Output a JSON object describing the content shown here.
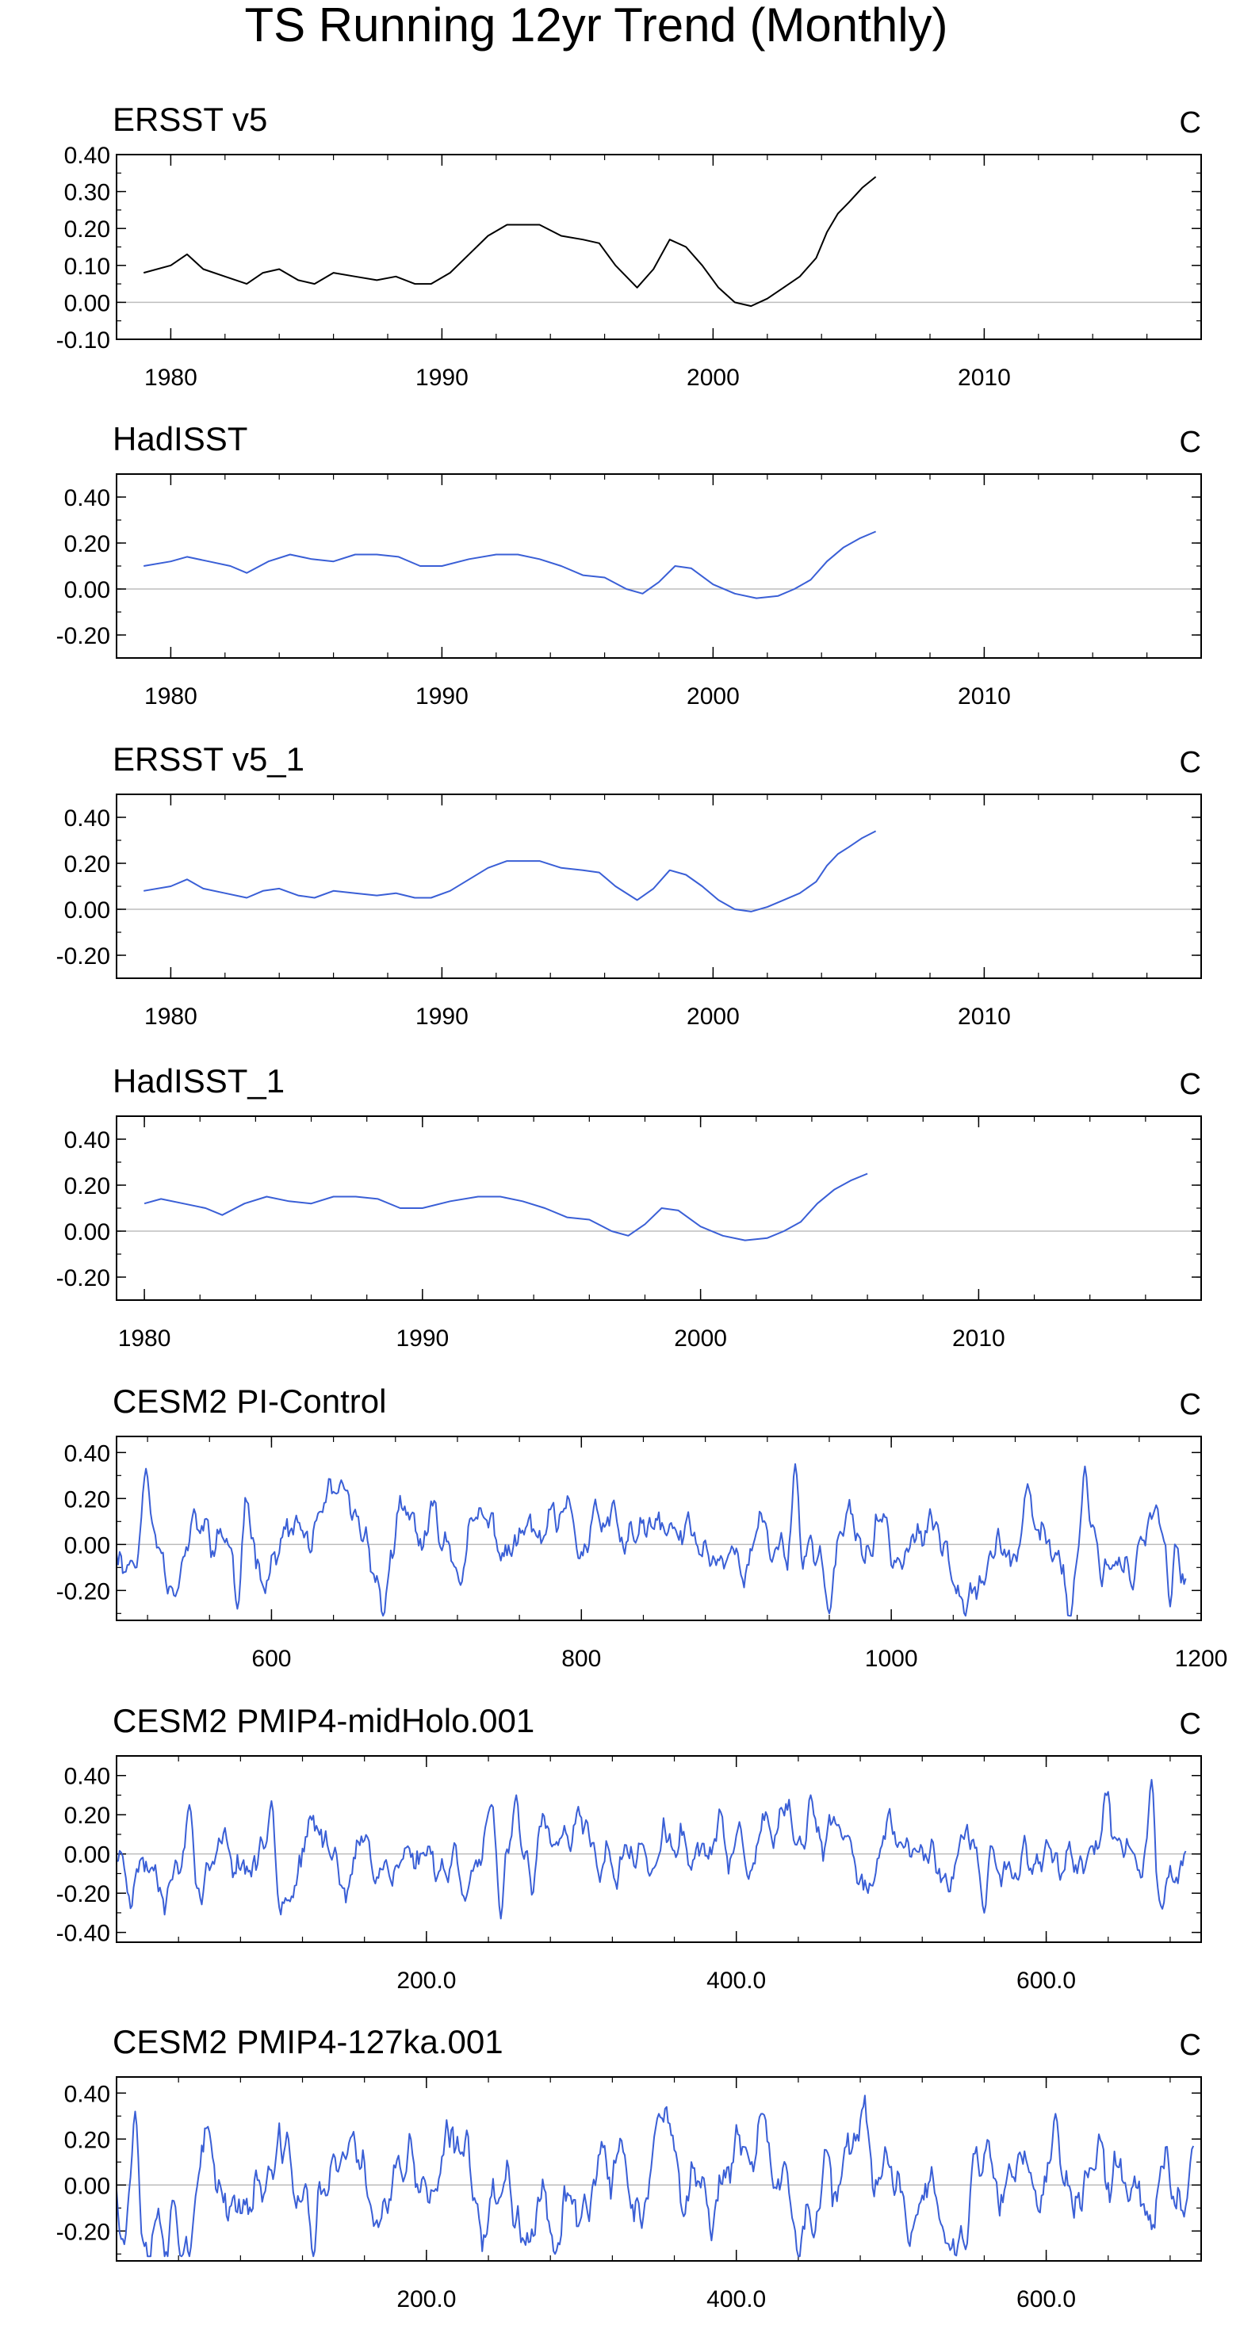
{
  "figure_title": "TS Running 12yr Trend (Monthly)",
  "colors": {
    "observed": "#000000",
    "model": "#3a5fd6",
    "zero_line": "#bdbdbd",
    "frame": "#000000"
  },
  "chart_data": [
    {
      "type": "line",
      "title": "ERSST v5",
      "units_label": "C",
      "line_color": "black",
      "xlim": [
        1978,
        2018
      ],
      "ylim": [
        -0.1,
        0.4
      ],
      "xticks": [
        1980,
        1990,
        2000,
        2010
      ],
      "xtick_labels": [
        "1980",
        "1990",
        "2000",
        "2010"
      ],
      "yticks": [
        -0.1,
        0.0,
        0.1,
        0.2,
        0.3,
        0.4
      ],
      "ytick_labels": [
        "-0.10",
        "0.00",
        "0.10",
        "0.20",
        "0.30",
        "0.40"
      ],
      "x": [
        1979.0,
        1980.0,
        1980.6,
        1981.2,
        1982.0,
        1982.8,
        1983.4,
        1984.0,
        1984.7,
        1985.3,
        1986.0,
        1986.8,
        1987.6,
        1988.3,
        1989.0,
        1989.6,
        1990.3,
        1991.0,
        1991.7,
        1992.4,
        1993.0,
        1993.6,
        1994.4,
        1995.2,
        1995.8,
        1996.4,
        1997.2,
        1997.8,
        1998.4,
        1999.0,
        1999.6,
        2000.2,
        2000.8,
        2001.4,
        2002.0,
        2002.6,
        2003.2,
        2003.8,
        2004.2,
        2004.6,
        2005.0,
        2005.5,
        2006.0
      ],
      "y": [
        0.08,
        0.1,
        0.13,
        0.09,
        0.07,
        0.05,
        0.08,
        0.09,
        0.06,
        0.05,
        0.08,
        0.07,
        0.06,
        0.07,
        0.05,
        0.05,
        0.08,
        0.13,
        0.18,
        0.21,
        0.21,
        0.21,
        0.18,
        0.17,
        0.16,
        0.1,
        0.04,
        0.09,
        0.17,
        0.15,
        0.1,
        0.04,
        0.0,
        -0.01,
        0.01,
        0.04,
        0.07,
        0.12,
        0.19,
        0.24,
        0.27,
        0.31,
        0.34
      ]
    },
    {
      "type": "line",
      "title": "HadISST",
      "units_label": "C",
      "line_color": "blue",
      "xlim": [
        1978,
        2018
      ],
      "ylim": [
        -0.3,
        0.5
      ],
      "xticks": [
        1980,
        1990,
        2000,
        2010
      ],
      "xtick_labels": [
        "1980",
        "1990",
        "2000",
        "2010"
      ],
      "yticks": [
        -0.2,
        0.0,
        0.2,
        0.4
      ],
      "ytick_labels": [
        "-0.20",
        "0.00",
        "0.20",
        "0.40"
      ],
      "x": [
        1979.0,
        1980.0,
        1980.6,
        1981.4,
        1982.2,
        1982.8,
        1983.6,
        1984.4,
        1985.2,
        1986.0,
        1986.8,
        1987.6,
        1988.4,
        1989.2,
        1990.0,
        1991.0,
        1992.0,
        1992.8,
        1993.6,
        1994.4,
        1995.2,
        1996.0,
        1996.8,
        1997.4,
        1998.0,
        1998.6,
        1999.2,
        2000.0,
        2000.8,
        2001.6,
        2002.4,
        2003.0,
        2003.6,
        2004.2,
        2004.8,
        2005.4,
        2006.0
      ],
      "y": [
        0.1,
        0.12,
        0.14,
        0.12,
        0.1,
        0.07,
        0.12,
        0.15,
        0.13,
        0.12,
        0.15,
        0.15,
        0.14,
        0.1,
        0.1,
        0.13,
        0.15,
        0.15,
        0.13,
        0.1,
        0.06,
        0.05,
        0.0,
        -0.02,
        0.03,
        0.1,
        0.09,
        0.02,
        -0.02,
        -0.04,
        -0.03,
        0.0,
        0.04,
        0.12,
        0.18,
        0.22,
        0.25
      ]
    },
    {
      "type": "line",
      "title": "ERSST v5_1",
      "units_label": "C",
      "line_color": "blue",
      "xlim": [
        1978,
        2018
      ],
      "ylim": [
        -0.3,
        0.5
      ],
      "xticks": [
        1980,
        1990,
        2000,
        2010
      ],
      "xtick_labels": [
        "1980",
        "1990",
        "2000",
        "2010"
      ],
      "yticks": [
        -0.2,
        0.0,
        0.2,
        0.4
      ],
      "ytick_labels": [
        "-0.20",
        "0.00",
        "0.20",
        "0.40"
      ],
      "x": [
        1979.0,
        1980.0,
        1980.6,
        1981.2,
        1982.0,
        1982.8,
        1983.4,
        1984.0,
        1984.7,
        1985.3,
        1986.0,
        1986.8,
        1987.6,
        1988.3,
        1989.0,
        1989.6,
        1990.3,
        1991.0,
        1991.7,
        1992.4,
        1993.0,
        1993.6,
        1994.4,
        1995.2,
        1995.8,
        1996.4,
        1997.2,
        1997.8,
        1998.4,
        1999.0,
        1999.6,
        2000.2,
        2000.8,
        2001.4,
        2002.0,
        2002.6,
        2003.2,
        2003.8,
        2004.2,
        2004.6,
        2005.0,
        2005.5,
        2006.0
      ],
      "y": [
        0.08,
        0.1,
        0.13,
        0.09,
        0.07,
        0.05,
        0.08,
        0.09,
        0.06,
        0.05,
        0.08,
        0.07,
        0.06,
        0.07,
        0.05,
        0.05,
        0.08,
        0.13,
        0.18,
        0.21,
        0.21,
        0.21,
        0.18,
        0.17,
        0.16,
        0.1,
        0.04,
        0.09,
        0.17,
        0.15,
        0.1,
        0.04,
        0.0,
        -0.01,
        0.01,
        0.04,
        0.07,
        0.12,
        0.19,
        0.24,
        0.27,
        0.31,
        0.34
      ]
    },
    {
      "type": "line",
      "title": "HadISST_1",
      "units_label": "C",
      "line_color": "blue",
      "xlim": [
        1979,
        2018
      ],
      "ylim": [
        -0.3,
        0.5
      ],
      "xticks": [
        1980,
        1990,
        2000,
        2010
      ],
      "xtick_labels": [
        "1980",
        "1990",
        "2000",
        "2010"
      ],
      "yticks": [
        -0.2,
        0.0,
        0.2,
        0.4
      ],
      "ytick_labels": [
        "-0.20",
        "0.00",
        "0.20",
        "0.40"
      ],
      "x": [
        1980.0,
        1980.6,
        1981.4,
        1982.2,
        1982.8,
        1983.6,
        1984.4,
        1985.2,
        1986.0,
        1986.8,
        1987.6,
        1988.4,
        1989.2,
        1990.0,
        1991.0,
        1992.0,
        1992.8,
        1993.6,
        1994.4,
        1995.2,
        1996.0,
        1996.8,
        1997.4,
        1998.0,
        1998.6,
        1999.2,
        2000.0,
        2000.8,
        2001.6,
        2002.4,
        2003.0,
        2003.6,
        2004.2,
        2004.8,
        2005.4,
        2006.0
      ],
      "y": [
        0.12,
        0.14,
        0.12,
        0.1,
        0.07,
        0.12,
        0.15,
        0.13,
        0.12,
        0.15,
        0.15,
        0.14,
        0.1,
        0.1,
        0.13,
        0.15,
        0.15,
        0.13,
        0.1,
        0.06,
        0.05,
        0.0,
        -0.02,
        0.03,
        0.1,
        0.09,
        0.02,
        -0.02,
        -0.04,
        -0.03,
        0.0,
        0.04,
        0.12,
        0.18,
        0.22,
        0.25
      ]
    },
    {
      "type": "line",
      "title": "CESM2 PI-Control",
      "units_label": "C",
      "line_color": "blue",
      "xlim": [
        500,
        1200
      ],
      "ylim": [
        -0.33,
        0.47
      ],
      "xticks": [
        600,
        800,
        1000,
        1200
      ],
      "xtick_labels": [
        "600",
        "800",
        "1000",
        "1200"
      ],
      "yticks": [
        -0.2,
        0.0,
        0.2,
        0.4
      ],
      "ytick_labels": [
        "-0.20",
        "0.00",
        "0.20",
        "0.40"
      ],
      "x": [
        500,
        1190
      ],
      "generated": {
        "amplitude": 0.09,
        "seed": 11,
        "spikes": [
          [
            519,
            0.33
          ],
          [
            578,
            -0.28
          ],
          [
            645,
            0.28
          ],
          [
            672,
            -0.33
          ],
          [
            938,
            0.35
          ],
          [
            960,
            -0.3
          ],
          [
            1115,
            -0.34
          ],
          [
            1125,
            0.34
          ],
          [
            1180,
            -0.27
          ]
        ]
      }
    },
    {
      "type": "line",
      "title": "CESM2 PMIP4-midHolo.001",
      "units_label": "C",
      "line_color": "blue",
      "xlim": [
        0,
        700
      ],
      "ylim": [
        -0.45,
        0.5
      ],
      "xticks": [
        200,
        400,
        600
      ],
      "xtick_labels": [
        "200.0",
        "400.0",
        "600.0"
      ],
      "yticks": [
        -0.4,
        -0.2,
        0.0,
        0.2,
        0.4
      ],
      "ytick_labels": [
        "-0.40",
        "-0.20",
        "0.00",
        "0.20",
        "0.40"
      ],
      "x": [
        0,
        690
      ],
      "generated": {
        "amplitude": 0.1,
        "seed": 23,
        "spikes": [
          [
            47,
            0.25
          ],
          [
            100,
            0.27
          ],
          [
            248,
            -0.33
          ],
          [
            258,
            0.3
          ],
          [
            448,
            0.3
          ],
          [
            560,
            -0.3
          ],
          [
            668,
            0.38
          ],
          [
            675,
            -0.28
          ]
        ]
      }
    },
    {
      "type": "line",
      "title": "CESM2 PMIP4-127ka.001",
      "units_label": "C",
      "line_color": "blue",
      "xlim": [
        0,
        700
      ],
      "ylim": [
        -0.33,
        0.47
      ],
      "xticks": [
        200,
        400,
        600
      ],
      "xtick_labels": [
        "200.0",
        "400.0",
        "600.0"
      ],
      "yticks": [
        -0.2,
        0.0,
        0.2,
        0.4
      ],
      "ytick_labels": [
        "-0.20",
        "0.00",
        "0.20",
        "0.40"
      ],
      "x": [
        0,
        695
      ],
      "generated": {
        "amplitude": 0.12,
        "seed": 37,
        "spikes": [
          [
            12,
            0.32
          ],
          [
            127,
            -0.33
          ],
          [
            283,
            -0.3
          ],
          [
            350,
            0.31
          ],
          [
            417,
            0.31
          ],
          [
            548,
            -0.28
          ],
          [
            606,
            0.31
          ],
          [
            695,
            0.17
          ]
        ]
      }
    }
  ]
}
